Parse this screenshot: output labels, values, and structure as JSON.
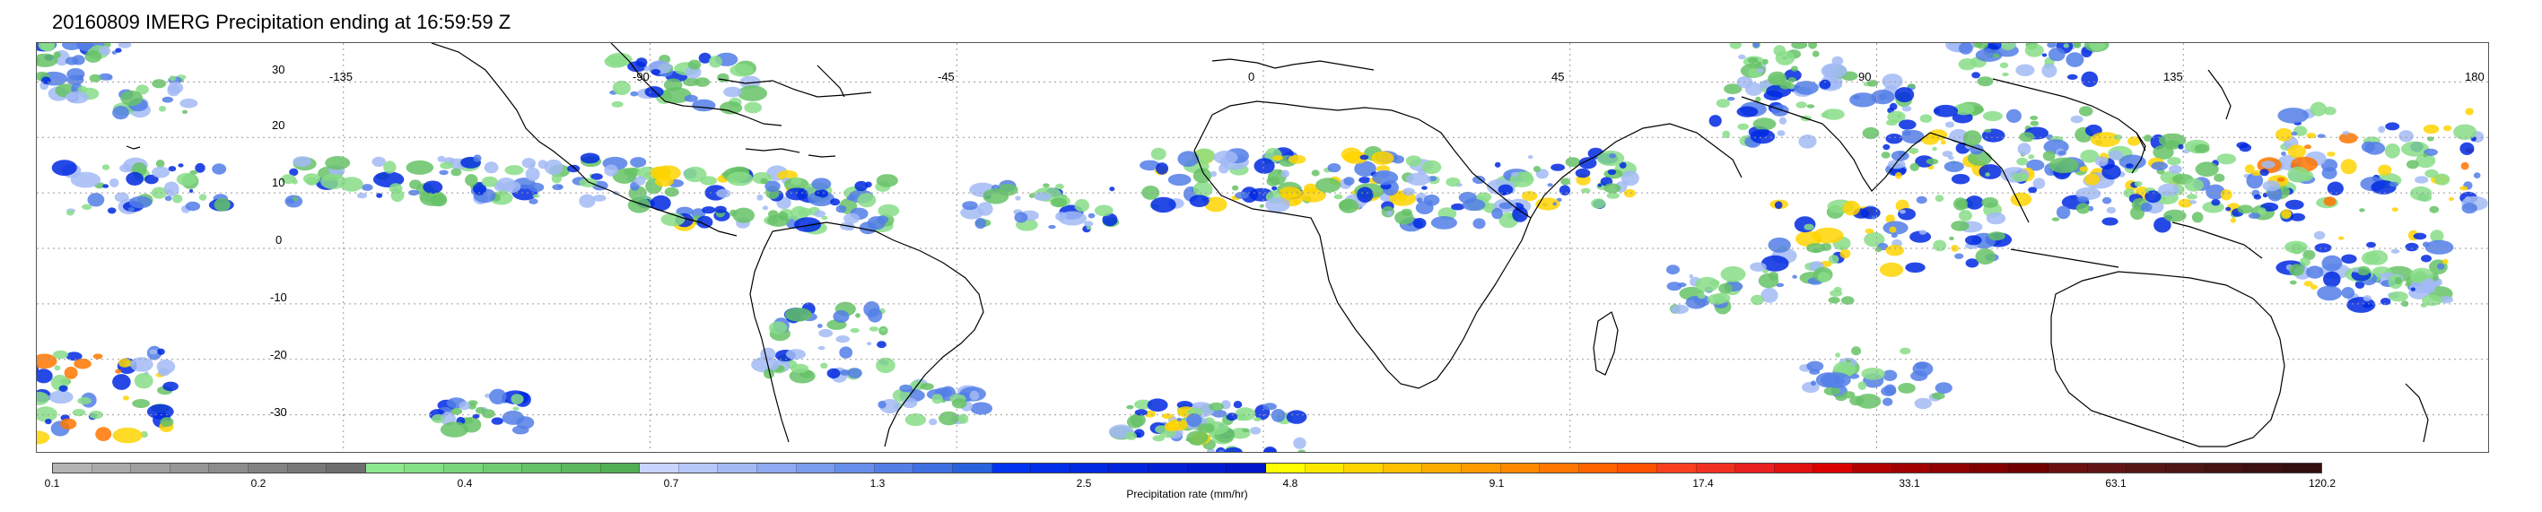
{
  "title": "20160809 IMERG Precipitation ending at 16:59:59 Z",
  "map": {
    "lon_range": [
      -180,
      180
    ],
    "lat_range": [
      -37,
      37
    ],
    "lon_labels": [
      "-135",
      "-90",
      "-45",
      "0",
      "45",
      "90",
      "135",
      "180"
    ],
    "lat_labels": [
      "30",
      "20",
      "10",
      "0",
      "-10",
      "-20",
      "-30"
    ],
    "gridlines": "dotted",
    "coastline_color": "#000000"
  },
  "colorbar": {
    "title": "Precipitation rate (mm/hr)",
    "tick_labels": [
      "0.1",
      "0.2",
      "0.4",
      "0.7",
      "1.3",
      "2.5",
      "4.8",
      "9.1",
      "17.4",
      "33.1",
      "63.1",
      "120.2"
    ],
    "colors": [
      "#b4b4b4",
      "#aaaaaa",
      "#a0a0a0",
      "#969696",
      "#8c8c8c",
      "#828282",
      "#787878",
      "#6e6e6e",
      "#8ee88e",
      "#84e084",
      "#7ad67a",
      "#70cc70",
      "#66c266",
      "#5cb85c",
      "#52ae52",
      "#c8d4ff",
      "#b6c8fa",
      "#a2baf4",
      "#8eaaf0",
      "#7a9cec",
      "#668eea",
      "#527ee6",
      "#3e70e2",
      "#2a62de",
      "#0033ee",
      "#002ee8",
      "#0029e2",
      "#0024dc",
      "#001fd6",
      "#001ad0",
      "#0015ca",
      "#ffff00",
      "#ffe800",
      "#ffd400",
      "#ffc000",
      "#ffac00",
      "#ff9a00",
      "#ff8800",
      "#ff7600",
      "#ff6400",
      "#ff5200",
      "#f84020",
      "#f03020",
      "#e82020",
      "#e01010",
      "#d80000",
      "#b00000",
      "#a00000",
      "#900000",
      "#800000",
      "#700000",
      "#6a1010",
      "#601515",
      "#561515",
      "#4d1414",
      "#441212",
      "#3c1010",
      "#330e0e"
    ]
  }
}
